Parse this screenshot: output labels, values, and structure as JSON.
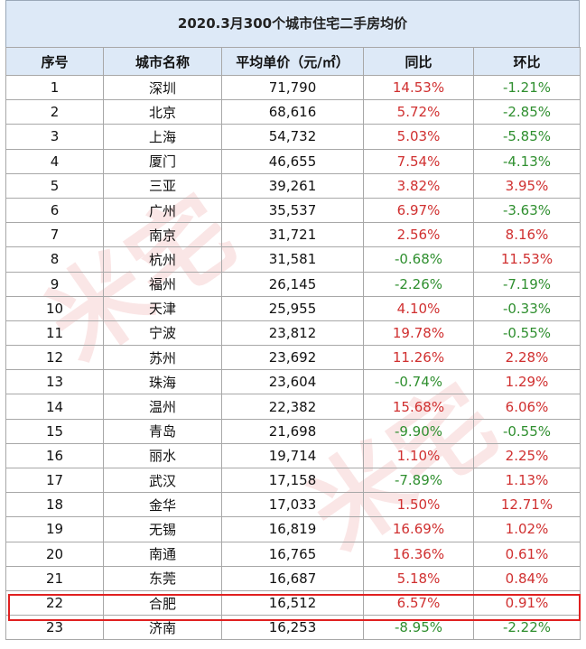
{
  "title": "2020.3月300个城市住宅二手房均价",
  "headers": [
    "序号",
    "城市名称",
    "平均单价（元/㎡）",
    "同比",
    "环比"
  ],
  "watermark_text": "米宅",
  "rows": [
    {
      "no": "1",
      "city": "深圳",
      "price": "71,790",
      "yoy": "14.53%",
      "mom": "-1.21%"
    },
    {
      "no": "2",
      "city": "北京",
      "price": "68,616",
      "yoy": "5.72%",
      "mom": "-2.85%"
    },
    {
      "no": "3",
      "city": "上海",
      "price": "54,732",
      "yoy": "5.03%",
      "mom": "-5.85%"
    },
    {
      "no": "4",
      "city": "厦门",
      "price": "46,655",
      "yoy": "7.54%",
      "mom": "-4.13%"
    },
    {
      "no": "5",
      "city": "三亚",
      "price": "39,261",
      "yoy": "3.82%",
      "mom": "3.95%"
    },
    {
      "no": "6",
      "city": "广州",
      "price": "35,537",
      "yoy": "6.97%",
      "mom": "-3.63%"
    },
    {
      "no": "7",
      "city": "南京",
      "price": "31,721",
      "yoy": "2.56%",
      "mom": "8.16%"
    },
    {
      "no": "8",
      "city": "杭州",
      "price": "31,581",
      "yoy": "-0.68%",
      "mom": "11.53%"
    },
    {
      "no": "9",
      "city": "福州",
      "price": "26,145",
      "yoy": "-2.26%",
      "mom": "-7.19%"
    },
    {
      "no": "10",
      "city": "天津",
      "price": "25,955",
      "yoy": "4.10%",
      "mom": "-0.33%"
    },
    {
      "no": "11",
      "city": "宁波",
      "price": "23,812",
      "yoy": "19.78%",
      "mom": "-0.55%"
    },
    {
      "no": "12",
      "city": "苏州",
      "price": "23,692",
      "yoy": "11.26%",
      "mom": "2.28%"
    },
    {
      "no": "13",
      "city": "珠海",
      "price": "23,604",
      "yoy": "-0.74%",
      "mom": "1.29%"
    },
    {
      "no": "14",
      "city": "温州",
      "price": "22,382",
      "yoy": "15.68%",
      "mom": "6.06%"
    },
    {
      "no": "15",
      "city": "青岛",
      "price": "21,698",
      "yoy": "-9.90%",
      "mom": "-0.55%"
    },
    {
      "no": "16",
      "city": "丽水",
      "price": "19,714",
      "yoy": "1.10%",
      "mom": "2.25%"
    },
    {
      "no": "17",
      "city": "武汉",
      "price": "17,158",
      "yoy": "-7.89%",
      "mom": "1.13%"
    },
    {
      "no": "18",
      "city": "金华",
      "price": "17,033",
      "yoy": "1.50%",
      "mom": "12.71%"
    },
    {
      "no": "19",
      "city": "无锡",
      "price": "16,819",
      "yoy": "16.69%",
      "mom": "1.02%"
    },
    {
      "no": "20",
      "city": "南通",
      "price": "16,765",
      "yoy": "16.36%",
      "mom": "0.61%"
    },
    {
      "no": "21",
      "city": "东莞",
      "price": "16,687",
      "yoy": "5.18%",
      "mom": "0.84%"
    },
    {
      "no": "22",
      "city": "合肥",
      "price": "16,512",
      "yoy": "6.57%",
      "mom": "0.91%"
    },
    {
      "no": "23",
      "city": "济南",
      "price": "16,253",
      "yoy": "-8.95%",
      "mom": "-2.22%"
    }
  ],
  "highlighted_row_index": 21,
  "colors": {
    "positive": "#d03030",
    "negative": "#2f8f2f",
    "highlight": "#e02020",
    "header_bg": "#dde9f7"
  }
}
